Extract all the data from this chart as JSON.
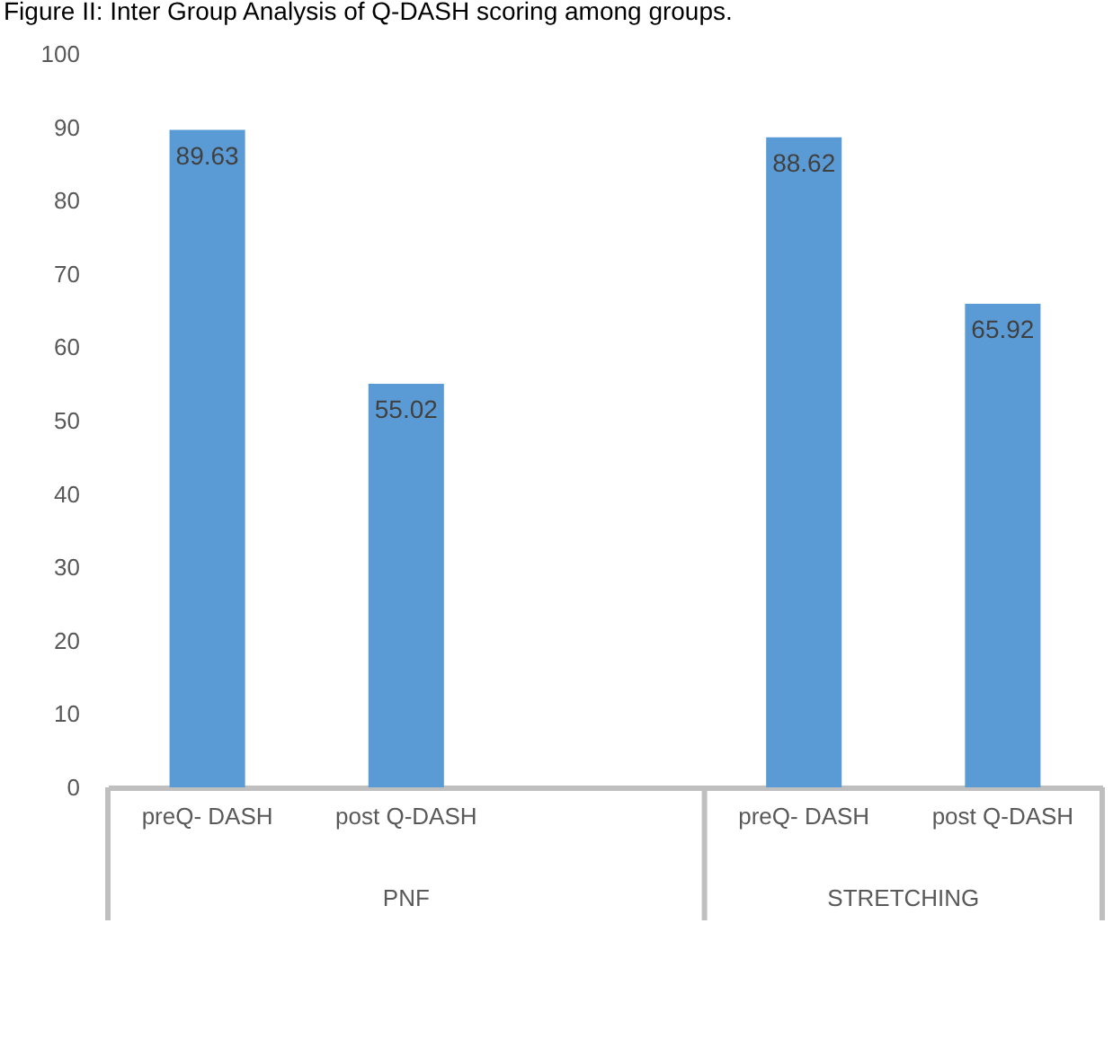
{
  "chart_data": {
    "type": "bar",
    "title": "Figure II: Inter Group Analysis of Q-DASH scoring among groups.",
    "categories": [
      "preQ- DASH",
      "post Q-DASH",
      null,
      "preQ- DASH",
      "post Q-DASH"
    ],
    "values": [
      89.63,
      55.02,
      null,
      88.62,
      65.92
    ],
    "color": "#5b9bd5",
    "annotations": [
      "PNF",
      "STRETCHING"
    ],
    "ylim": [
      0,
      100
    ],
    "yticks": [
      0,
      10,
      20,
      30,
      40,
      50,
      60,
      70,
      80,
      90,
      100
    ],
    "data_labels": true,
    "grid": false
  }
}
